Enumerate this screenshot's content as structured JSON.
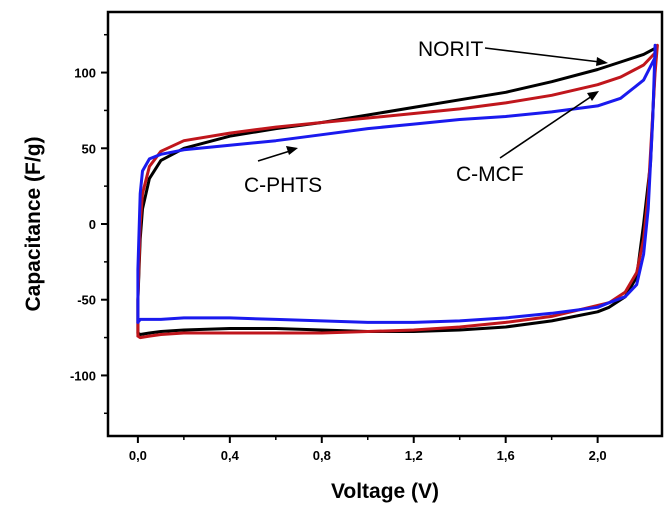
{
  "chart_data": {
    "type": "line",
    "title": "",
    "xlabel": "Voltage (V)",
    "ylabel": "Capacitance (F/g)",
    "xlim": [
      -0.13,
      2.28
    ],
    "ylim": [
      -140,
      140
    ],
    "x_ticks": [
      0.0,
      0.4,
      0.8,
      1.2,
      1.6,
      2.0
    ],
    "x_tick_labels": [
      "0,0",
      "0,4",
      "0,8",
      "1,2",
      "1,6",
      "2,0"
    ],
    "y_ticks": [
      100,
      50,
      0,
      -50,
      -100
    ],
    "y_tick_labels": [
      "100",
      "50",
      "0",
      "-50",
      "-100"
    ],
    "grid": false,
    "legend": "none",
    "annotations": [
      {
        "text": "NORIT",
        "series": "NORIT"
      },
      {
        "text": "C-MCF",
        "series": "C-MCF"
      },
      {
        "text": "C-PHTS",
        "series": "C-PHTS"
      }
    ],
    "series": [
      {
        "name": "NORIT",
        "color": "#000000",
        "x": [
          0.0,
          0.0,
          0.01,
          0.02,
          0.05,
          0.1,
          0.2,
          0.4,
          0.6,
          0.8,
          1.0,
          1.2,
          1.4,
          1.6,
          1.8,
          2.0,
          2.1,
          2.2,
          2.25,
          2.25,
          2.23,
          2.2,
          2.17,
          2.12,
          2.05,
          2.0,
          1.9,
          1.8,
          1.6,
          1.4,
          1.2,
          1.0,
          0.8,
          0.6,
          0.4,
          0.2,
          0.1,
          0.05,
          0.01,
          0.0
        ],
        "y": [
          -72,
          -50,
          -10,
          10,
          30,
          42,
          50,
          58,
          63,
          67,
          72,
          77,
          82,
          87,
          94,
          102,
          107,
          112,
          116,
          105,
          40,
          0,
          -35,
          -48,
          -55,
          -58,
          -61,
          -64,
          -68,
          -70,
          -71,
          -71,
          -70,
          -69,
          -69,
          -70,
          -71,
          -72,
          -73,
          -72
        ]
      },
      {
        "name": "C-MCF",
        "color": "#c0161c",
        "x": [
          0.0,
          0.0,
          0.01,
          0.02,
          0.05,
          0.1,
          0.2,
          0.4,
          0.6,
          0.8,
          1.0,
          1.2,
          1.4,
          1.6,
          1.8,
          2.0,
          2.1,
          2.2,
          2.25,
          2.26,
          2.25,
          2.22,
          2.2,
          2.17,
          2.12,
          2.05,
          1.8,
          1.6,
          1.4,
          1.2,
          1.0,
          0.8,
          0.6,
          0.4,
          0.2,
          0.1,
          0.05,
          0.01,
          0.0
        ],
        "y": [
          -74,
          -50,
          0,
          20,
          38,
          48,
          55,
          60,
          64,
          67,
          70,
          73,
          76,
          80,
          85,
          92,
          97,
          105,
          113,
          118,
          100,
          20,
          -10,
          -32,
          -45,
          -52,
          -61,
          -65,
          -68,
          -70,
          -71,
          -72,
          -72,
          -72,
          -72,
          -73,
          -74,
          -75,
          -74
        ]
      },
      {
        "name": "C-PHTS",
        "color": "#1a1aee",
        "x": [
          0.0,
          0.0,
          0.01,
          0.02,
          0.05,
          0.1,
          0.2,
          0.4,
          0.6,
          0.8,
          1.0,
          1.2,
          1.4,
          1.6,
          1.8,
          2.0,
          2.1,
          2.2,
          2.25,
          2.25,
          2.24,
          2.22,
          2.2,
          2.17,
          2.12,
          2.05,
          2.0,
          1.8,
          1.6,
          1.4,
          1.2,
          1.0,
          0.8,
          0.6,
          0.4,
          0.2,
          0.1,
          0.05,
          0.01,
          0.0
        ],
        "y": [
          -65,
          -30,
          20,
          35,
          43,
          46,
          49,
          52,
          55,
          59,
          63,
          66,
          69,
          71,
          74,
          78,
          83,
          95,
          110,
          118,
          70,
          10,
          -20,
          -40,
          -48,
          -52,
          -55,
          -59,
          -62,
          -64,
          -65,
          -65,
          -64,
          -63,
          -62,
          -62,
          -63,
          -63,
          -63,
          -65
        ]
      }
    ]
  }
}
